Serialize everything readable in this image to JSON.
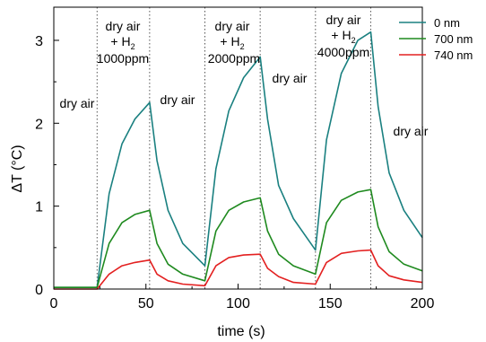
{
  "chart_data": {
    "type": "line",
    "xlabel": "time (s)",
    "ylabel": "ΔT (°C)",
    "xlim": [
      0,
      200
    ],
    "ylim": [
      0,
      3.4
    ],
    "x_ticks": [
      "0",
      "50",
      "100",
      "150",
      "200"
    ],
    "y_ticks": [
      "0",
      "1",
      "2",
      "3"
    ],
    "grid": false,
    "legend_position": "top-right",
    "gas_switch_times": [
      23.5,
      52,
      82,
      112,
      142,
      172
    ],
    "annotations": [
      {
        "id": "a1",
        "line1": "dry air"
      },
      {
        "id": "a2",
        "line1": "dry air",
        "line2_pre": "+ H",
        "line2_sub": "2",
        "line3": "1000ppm"
      },
      {
        "id": "a3",
        "line1": "dry air"
      },
      {
        "id": "a4",
        "line1": "dry air",
        "line2_pre": "+ H",
        "line2_sub": "2",
        "line3": "2000ppm"
      },
      {
        "id": "a5",
        "line1": "dry air"
      },
      {
        "id": "a6",
        "line1": "dry air",
        "line2_pre": "+ H",
        "line2_sub": "2",
        "line3": "4000ppm"
      },
      {
        "id": "a7",
        "line1": "dry air"
      }
    ],
    "series": [
      {
        "name": "0 nm",
        "color": "#1a8080",
        "x": [
          0,
          22,
          23.5,
          30,
          37,
          44,
          52,
          56,
          62,
          70,
          82,
          88,
          95,
          103,
          112,
          116,
          122,
          130,
          142,
          148,
          156,
          165,
          172,
          176,
          182,
          190,
          200
        ],
        "y": [
          0.02,
          0.02,
          0.02,
          1.15,
          1.75,
          2.05,
          2.25,
          1.55,
          0.95,
          0.55,
          0.28,
          1.45,
          2.15,
          2.55,
          2.8,
          2.05,
          1.25,
          0.85,
          0.47,
          1.8,
          2.6,
          3.0,
          3.1,
          2.2,
          1.4,
          0.95,
          0.62
        ]
      },
      {
        "name": "700 nm",
        "color": "#1f8a1f",
        "x": [
          0,
          22,
          23.5,
          30,
          37,
          44,
          52,
          56,
          62,
          70,
          82,
          88,
          95,
          103,
          112,
          116,
          122,
          130,
          142,
          148,
          156,
          165,
          172,
          176,
          182,
          190,
          200
        ],
        "y": [
          0.02,
          0.02,
          0.02,
          0.55,
          0.8,
          0.9,
          0.95,
          0.55,
          0.3,
          0.18,
          0.1,
          0.7,
          0.95,
          1.05,
          1.1,
          0.7,
          0.42,
          0.28,
          0.18,
          0.8,
          1.07,
          1.17,
          1.2,
          0.75,
          0.45,
          0.3,
          0.22
        ]
      },
      {
        "name": "740 nm",
        "color": "#e32020",
        "x": [
          0,
          22,
          23.5,
          30,
          37,
          44,
          52,
          56,
          62,
          70,
          82,
          88,
          95,
          103,
          112,
          116,
          122,
          130,
          142,
          148,
          156,
          165,
          172,
          176,
          182,
          190,
          200
        ],
        "y": [
          0.0,
          0.0,
          0.0,
          0.18,
          0.28,
          0.32,
          0.35,
          0.18,
          0.1,
          0.06,
          0.04,
          0.28,
          0.38,
          0.41,
          0.42,
          0.25,
          0.15,
          0.08,
          0.06,
          0.32,
          0.43,
          0.46,
          0.47,
          0.28,
          0.16,
          0.11,
          0.08
        ]
      }
    ]
  }
}
